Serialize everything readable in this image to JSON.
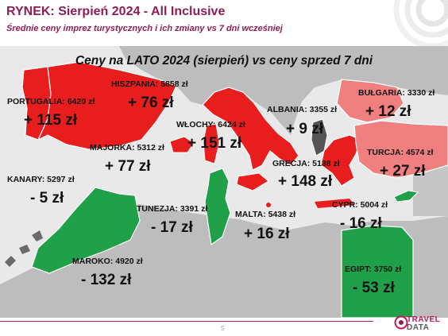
{
  "header": {
    "title": "RYNEK: Sierpień 2024 - All Inclusive",
    "subtitle": "Średnie ceny imprez turystycznych i ich zmiany vs 7 dni wcześniej"
  },
  "map_title": "Ceny na LATO 2024 (sierpień) vs ceny sprzed 7 dni",
  "legend_colors": {
    "increase": "#e81e1e",
    "decrease": "#21a04a",
    "increase_light": "#f08080"
  },
  "regions": [
    {
      "key": "portugalia",
      "label": "PORTUGALIA: 6420 zł",
      "change": "+ 115 zł",
      "trend": "up"
    },
    {
      "key": "hiszpania",
      "label": "HISZPANIA: 5858 zł",
      "change": "+ 76 zł",
      "trend": "up"
    },
    {
      "key": "majorka",
      "label": "MAJORKA: 5312 zł",
      "change": "+ 77 zł",
      "trend": "up"
    },
    {
      "key": "kanary",
      "label": "KANARY: 5297 zł",
      "change": "- 5 zł",
      "trend": "down"
    },
    {
      "key": "wlochy",
      "label": "WŁOCHY: 6424 zł",
      "change": "+ 151 zł",
      "trend": "up"
    },
    {
      "key": "albania",
      "label": "ALBANIA: 3355 zł",
      "change": "+ 9 zł",
      "trend": "up"
    },
    {
      "key": "bulgaria",
      "label": "BUŁGARIA: 3330 zł",
      "change": "+ 12 zł",
      "trend": "up"
    },
    {
      "key": "turcja",
      "label": "TURCJA: 4574 zł",
      "change": "+ 27 zł",
      "trend": "up"
    },
    {
      "key": "grecja",
      "label": "GRECJA: 5138 zł",
      "change": "+ 148 zł",
      "trend": "up"
    },
    {
      "key": "tunezja",
      "label": "TUNEZJA: 3391 zł",
      "change": "- 17 zł",
      "trend": "down"
    },
    {
      "key": "malta",
      "label": "MALTA: 5438 zł",
      "change": "+ 16 zł",
      "trend": "up"
    },
    {
      "key": "cypr",
      "label": "CYPR: 5004 zł",
      "change": "- 16 zł",
      "trend": "down"
    },
    {
      "key": "maroko",
      "label": "MAROKO: 4920 zł",
      "change": "- 132 zł",
      "trend": "down"
    },
    {
      "key": "egipt",
      "label": "EGIPT: 3750 zł",
      "change": "- 53 zł",
      "trend": "down"
    }
  ],
  "footer": {
    "page_number": "5",
    "logo_line1": "TRAVEL",
    "logo_line2": "DATA"
  }
}
